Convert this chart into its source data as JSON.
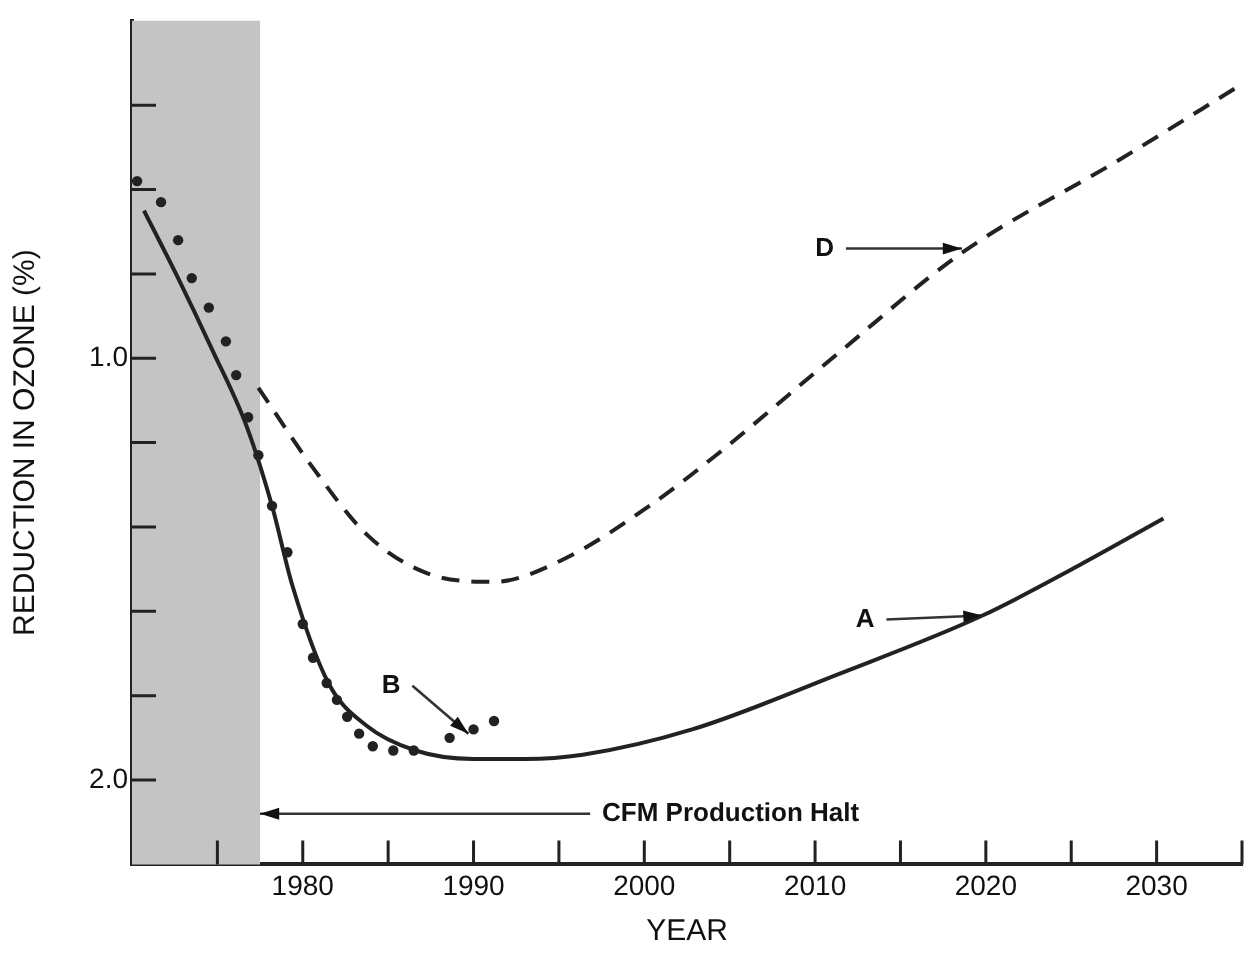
{
  "chart_data": {
    "type": "line",
    "xlabel": "YEAR",
    "ylabel": "REDUCTION IN OZONE (%)",
    "xlim": [
      1970,
      2035
    ],
    "ylim": [
      2.2,
      0.2
    ],
    "xticks": [
      {
        "value": 1975,
        "label": null
      },
      1980,
      {
        "value": 1985,
        "label": null
      },
      1990,
      {
        "value": 1995,
        "label": null
      },
      2000,
      {
        "value": 2005,
        "label": null
      },
      2010,
      {
        "value": 2015,
        "label": null
      },
      2020,
      {
        "value": 2025,
        "label": null
      },
      2030,
      {
        "value": 2035,
        "label": null
      }
    ],
    "yticks": [
      {
        "value": 0.4,
        "label": null
      },
      {
        "value": 0.6,
        "label": null
      },
      {
        "value": 0.8,
        "label": null
      },
      {
        "value": 1.0,
        "label": "1.0"
      },
      {
        "value": 1.2,
        "label": null
      },
      {
        "value": 1.4,
        "label": null
      },
      {
        "value": 1.6,
        "label": null
      },
      {
        "value": 1.8,
        "label": null
      },
      {
        "value": 2.0,
        "label": "2.0"
      }
    ],
    "grid": false,
    "legend": false,
    "series": [
      {
        "line_style": "solid",
        "color": "#222222",
        "x": [
          1970.7,
          1972.7,
          1974.7,
          1976.7,
          1978.2,
          1979.4,
          1981.5,
          1983.7,
          1986.6,
          1990,
          1993,
          1996.4,
          2002.8,
          2011.3,
          2019.8,
          2025.5,
          2030.4
        ],
        "values": [
          0.65,
          0.81,
          0.98,
          1.16,
          1.35,
          1.54,
          1.77,
          1.87,
          1.93,
          1.95,
          1.95,
          1.94,
          1.88,
          1.75,
          1.61,
          1.49,
          1.38
        ]
      },
      {
        "line_style": "dashed",
        "color": "#222222",
        "x": [
          1977.4,
          1980.6,
          1983.8,
          1987.3,
          1991.2,
          1995.1,
          2000.3,
          2004.2,
          2011.3,
          2018.6,
          2027.8,
          2035
        ],
        "values": [
          1.07,
          1.26,
          1.42,
          1.51,
          1.53,
          1.48,
          1.35,
          1.23,
          0.99,
          0.75,
          0.53,
          0.35
        ]
      },
      {
        "type": "scatter",
        "marker": "circle",
        "color": "#222222",
        "x": [
          1970.3,
          1971.7,
          1972.7,
          1973.5,
          1974.5,
          1975.5,
          1976.1,
          1976.8,
          1977.4,
          1978.2,
          1979.1,
          1980,
          1980.6,
          1981.4,
          1982,
          1982.6,
          1983.3,
          1984.1,
          1985.3,
          1986.5,
          1988.6,
          1990,
          1991.2
        ],
        "values": [
          0.58,
          0.63,
          0.72,
          0.81,
          0.88,
          0.96,
          1.04,
          1.14,
          1.23,
          1.35,
          1.46,
          1.63,
          1.71,
          1.77,
          1.81,
          1.85,
          1.89,
          1.92,
          1.93,
          1.93,
          1.9,
          1.88,
          1.86
        ]
      }
    ],
    "bands": [
      {
        "axis": "x",
        "from": 1970,
        "to": 1977.5,
        "color": "#c4c4c4"
      }
    ],
    "annotations": [
      {
        "text": "A",
        "x": 2019.8,
        "y": 1.61
      },
      {
        "text": "B",
        "x": 1989.7,
        "y": 1.89
      },
      {
        "text": "D",
        "x": 2018.6,
        "y": 0.74
      },
      {
        "text": "CFM Production Halt",
        "x": 1977.5,
        "y": 2.08
      }
    ]
  }
}
